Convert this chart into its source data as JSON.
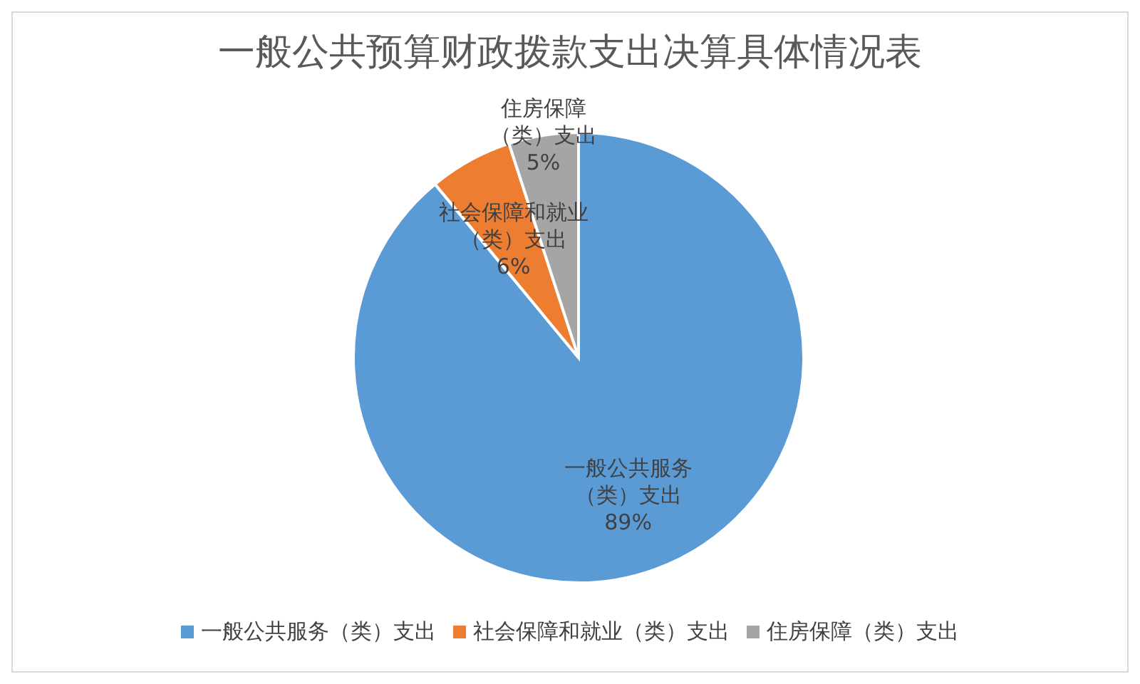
{
  "chart_data": {
    "type": "pie",
    "title": "一般公共预算财政拨款支出决算具体情况表",
    "categories": [
      "一般公共服务（类）支出",
      "社会保障和就业（类）支出",
      "住房保障（类）支出"
    ],
    "values": [
      89,
      6,
      5
    ],
    "colors": [
      "#5b9bd5",
      "#ed7d31",
      "#a5a5a5"
    ],
    "value_labels": [
      "89%",
      "6%",
      "5%"
    ],
    "legend": "bottom"
  }
}
